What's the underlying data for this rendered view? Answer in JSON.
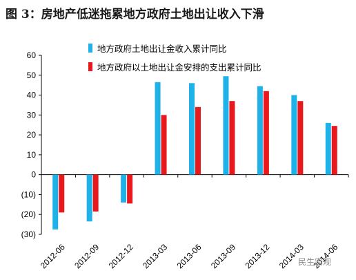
{
  "title": "图 3：房地产低迷拖累地方政府土地出让收入下滑",
  "watermark": "民生宏观",
  "colors": {
    "series1": "#1fb2e8",
    "series2": "#e8191c",
    "axis": "#000000"
  },
  "chart_data": {
    "type": "bar",
    "categories": [
      "2012-06",
      "2012-09",
      "2012-12",
      "2013-03",
      "2013-06",
      "2013-09",
      "2013-12",
      "2014-03",
      "2014-06"
    ],
    "series": [
      {
        "name": "地方政府土地出让金收入累计同比",
        "values": [
          -27.5,
          -23.5,
          -14,
          46.5,
          46,
          49.5,
          44.5,
          40,
          26
        ]
      },
      {
        "name": "地方政府以土地出让金安排的支出累计同比",
        "values": [
          -19,
          -18.5,
          -14.5,
          30,
          34,
          37,
          42,
          37,
          24.5
        ]
      }
    ],
    "ylim": [
      -30,
      60
    ],
    "yticks": [
      60,
      50,
      40,
      30,
      20,
      10,
      0,
      -10,
      -20,
      -30
    ],
    "ytick_labels": [
      "60",
      "50",
      "40",
      "30",
      "20",
      "10",
      "0",
      "(10)",
      "(20)",
      "(30)"
    ],
    "legend_position": "top",
    "grid": false
  }
}
